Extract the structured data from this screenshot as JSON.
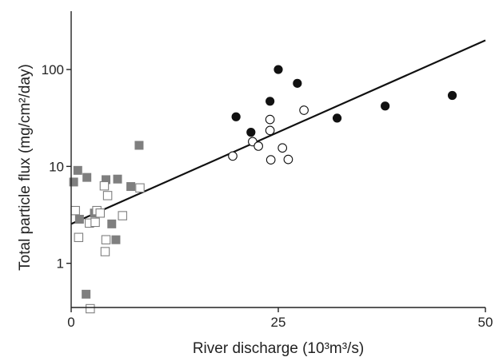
{
  "chart_data": {
    "type": "scatter",
    "title": "",
    "xlabel": "River discharge (10³m³/s)",
    "ylabel": "Total particle flux (mg/cm²/day)",
    "xlim": [
      0,
      50
    ],
    "ylim": [
      0.35,
      400
    ],
    "yscale": "log",
    "grid": false,
    "legend": "none",
    "xticks": [
      {
        "value": 0,
        "label": "0"
      },
      {
        "value": 25,
        "label": "25"
      },
      {
        "value": 50,
        "label": "50"
      }
    ],
    "yticks": [
      {
        "value": 1,
        "label": "1"
      },
      {
        "value": 10,
        "label": "10"
      },
      {
        "value": 100,
        "label": "100"
      }
    ],
    "series": [
      {
        "marker": "circle-filled",
        "color": "#111111",
        "points": [
          {
            "x": 19.9,
            "y": 32.5
          },
          {
            "x": 21.7,
            "y": 22.5
          },
          {
            "x": 24.0,
            "y": 47.0
          },
          {
            "x": 25.0,
            "y": 100.0
          },
          {
            "x": 27.3,
            "y": 72.0
          },
          {
            "x": 32.1,
            "y": 31.5
          },
          {
            "x": 37.9,
            "y": 42.0
          },
          {
            "x": 46.0,
            "y": 54.0
          }
        ]
      },
      {
        "marker": "circle-open",
        "color": "#111111",
        "points": [
          {
            "x": 19.5,
            "y": 12.8
          },
          {
            "x": 21.9,
            "y": 18.0
          },
          {
            "x": 22.6,
            "y": 16.2
          },
          {
            "x": 24.0,
            "y": 30.5
          },
          {
            "x": 24.0,
            "y": 23.5
          },
          {
            "x": 24.1,
            "y": 11.7
          },
          {
            "x": 25.5,
            "y": 15.5
          },
          {
            "x": 26.2,
            "y": 11.8
          },
          {
            "x": 28.1,
            "y": 38.0
          }
        ]
      },
      {
        "marker": "square-filled",
        "color": "#7f7f7f",
        "points": [
          {
            "x": 0.3,
            "y": 6.9
          },
          {
            "x": 0.8,
            "y": 9.1
          },
          {
            "x": 1.0,
            "y": 2.85
          },
          {
            "x": 1.8,
            "y": 0.48
          },
          {
            "x": 1.9,
            "y": 7.7
          },
          {
            "x": 2.8,
            "y": 3.3
          },
          {
            "x": 4.2,
            "y": 7.3
          },
          {
            "x": 4.9,
            "y": 2.55
          },
          {
            "x": 5.4,
            "y": 1.75
          },
          {
            "x": 5.6,
            "y": 7.4
          },
          {
            "x": 7.2,
            "y": 6.2
          },
          {
            "x": 8.2,
            "y": 16.5
          }
        ]
      },
      {
        "marker": "square-open",
        "color": "#7f7f7f",
        "points": [
          {
            "x": 0.5,
            "y": 3.5
          },
          {
            "x": 0.9,
            "y": 1.85
          },
          {
            "x": 2.2,
            "y": 2.6
          },
          {
            "x": 2.3,
            "y": 0.34
          },
          {
            "x": 2.9,
            "y": 2.65
          },
          {
            "x": 3.1,
            "y": 3.5
          },
          {
            "x": 3.5,
            "y": 3.3
          },
          {
            "x": 4.0,
            "y": 6.3
          },
          {
            "x": 4.1,
            "y": 1.32
          },
          {
            "x": 4.2,
            "y": 1.75
          },
          {
            "x": 4.4,
            "y": 5.0
          },
          {
            "x": 6.2,
            "y": 3.1
          },
          {
            "x": 8.3,
            "y": 6.0
          }
        ]
      }
    ],
    "fit_line": {
      "x": [
        0,
        50
      ],
      "y": [
        2.55,
        200
      ]
    }
  }
}
